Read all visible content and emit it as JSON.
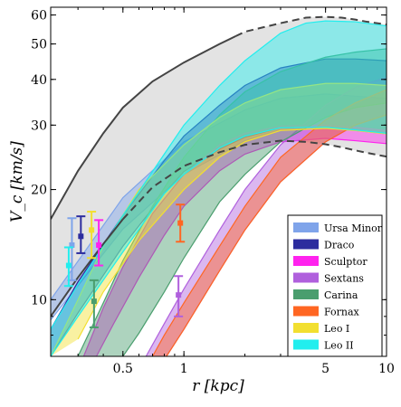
{
  "chart_data": {
    "type": "area",
    "xlabel": "r [kpc]",
    "ylabel": "V_c [km/s]",
    "xscale": "log",
    "yscale": "log",
    "xlim": [
      0.22,
      10
    ],
    "ylim": [
      7,
      63
    ],
    "x_ticks": [
      {
        "value": 0.5,
        "label": "0.5"
      },
      {
        "value": 1,
        "label": "1"
      },
      {
        "value": 5,
        "label": "5"
      },
      {
        "value": 10,
        "label": "10"
      }
    ],
    "y_ticks": [
      {
        "value": 10,
        "label": "10"
      },
      {
        "value": 20,
        "label": "20"
      },
      {
        "value": 30,
        "label": "30"
      },
      {
        "value": 40,
        "label": "40"
      },
      {
        "value": 50,
        "label": "50"
      },
      {
        "value": 60,
        "label": "60"
      }
    ],
    "legend_position": "bottom-right",
    "envelope": {
      "fill": "#e3e3e3",
      "line_color": "#444444",
      "upper": [
        [
          0.22,
          16.6
        ],
        [
          0.3,
          22.5
        ],
        [
          0.4,
          28.5
        ],
        [
          0.5,
          33.5
        ],
        [
          0.7,
          39.5
        ],
        [
          1.0,
          44.5
        ],
        [
          1.5,
          50
        ],
        [
          2.0,
          54
        ],
        [
          3.0,
          57
        ],
        [
          4.0,
          59
        ],
        [
          5.0,
          59.3
        ],
        [
          6.0,
          59
        ],
        [
          7.0,
          58.3
        ],
        [
          8.0,
          57.5
        ],
        [
          10.0,
          56.5
        ]
      ],
      "upper_solid_until": 1.8,
      "lower": [
        [
          0.22,
          9
        ],
        [
          0.3,
          11.5
        ],
        [
          0.4,
          14.2
        ],
        [
          0.5,
          16.6
        ],
        [
          0.7,
          20.3
        ],
        [
          1.0,
          23.2
        ],
        [
          1.5,
          25.3
        ],
        [
          2.0,
          26.5
        ],
        [
          3.0,
          27.2
        ],
        [
          4.0,
          27
        ],
        [
          5.0,
          26.6
        ],
        [
          6.0,
          26.1
        ],
        [
          7.0,
          25.6
        ],
        [
          8.0,
          25.2
        ],
        [
          10.0,
          24.6
        ]
      ],
      "lower_solid_until": 0.5
    },
    "series": [
      {
        "name": "Ursa Minor",
        "color": "#7fa4ea",
        "upper": [
          [
            0.22,
            10
          ],
          [
            0.5,
            19
          ],
          [
            1.0,
            27
          ],
          [
            2.0,
            33
          ],
          [
            3.0,
            35.5
          ],
          [
            5.0,
            36.5
          ],
          [
            7.0,
            36
          ],
          [
            10.0,
            35.5
          ]
        ],
        "lower": [
          [
            0.22,
            8.8
          ],
          [
            0.5,
            15.6
          ],
          [
            1.0,
            22
          ],
          [
            2.0,
            27.2
          ],
          [
            3.0,
            29.2
          ],
          [
            5.0,
            29.4
          ],
          [
            7.0,
            29
          ],
          [
            10.0,
            28.4
          ]
        ],
        "error_bar": {
          "x": 0.28,
          "y": 14.1,
          "y_low": 11.3,
          "y_high": 16.7
        }
      },
      {
        "name": "Draco",
        "color": "#2c2c9e",
        "upper": [
          [
            0.22,
            8.3
          ],
          [
            0.3,
            11.2
          ],
          [
            0.5,
            17
          ],
          [
            0.8,
            24
          ],
          [
            1.0,
            28
          ],
          [
            1.5,
            34
          ],
          [
            2.0,
            38.5
          ],
          [
            3.0,
            43
          ],
          [
            5.0,
            45.5
          ],
          [
            7.0,
            45.5
          ],
          [
            10.0,
            45
          ]
        ],
        "lower": [
          [
            0.22,
            7
          ],
          [
            0.3,
            9.2
          ],
          [
            0.5,
            14
          ],
          [
            0.8,
            19.5
          ],
          [
            1.0,
            22.4
          ],
          [
            1.5,
            25.8
          ],
          [
            2.0,
            27.8
          ],
          [
            3.0,
            29.5
          ],
          [
            5.0,
            29.6
          ],
          [
            7.0,
            29.1
          ],
          [
            10.0,
            28.5
          ]
        ],
        "error_bar": {
          "x": 0.31,
          "y": 14.9,
          "y_low": 13.4,
          "y_high": 16.9
        }
      },
      {
        "name": "Sculptor",
        "color": "#ff22ee",
        "upper": [
          [
            0.32,
            7
          ],
          [
            0.4,
            9.5
          ],
          [
            0.5,
            12.3
          ],
          [
            0.7,
            17.2
          ],
          [
            1.0,
            22
          ],
          [
            1.5,
            26.5
          ],
          [
            2.0,
            28.5
          ],
          [
            3.0,
            29.8
          ],
          [
            5.0,
            30
          ],
          [
            7.0,
            29.6
          ],
          [
            10.0,
            29
          ]
        ],
        "lower": [
          [
            0.37,
            7
          ],
          [
            0.45,
            8.6
          ],
          [
            0.6,
            11.5
          ],
          [
            0.8,
            15
          ],
          [
            1.0,
            18
          ],
          [
            1.5,
            22.5
          ],
          [
            2.0,
            25
          ],
          [
            3.0,
            27
          ],
          [
            5.0,
            27.6
          ],
          [
            7.0,
            27.2
          ],
          [
            10.0,
            26.7
          ]
        ],
        "error_bar": {
          "x": 0.38,
          "y": 14.1,
          "y_low": 12.4,
          "y_high": 16.5
        }
      },
      {
        "name": "Sextans",
        "color": "#b060dd",
        "upper": [
          [
            0.65,
            7
          ],
          [
            0.8,
            8.6
          ],
          [
            1.0,
            10.7
          ],
          [
            1.5,
            15.5
          ],
          [
            2.0,
            20
          ],
          [
            3.0,
            26.5
          ],
          [
            5.0,
            34
          ],
          [
            7.0,
            38
          ],
          [
            10.0,
            40.5
          ]
        ],
        "lower": [
          [
            0.82,
            7
          ],
          [
            1.0,
            8.3
          ],
          [
            1.5,
            12
          ],
          [
            2.0,
            15.5
          ],
          [
            3.0,
            21
          ],
          [
            5.0,
            27
          ],
          [
            7.0,
            30
          ],
          [
            10.0,
            32
          ]
        ],
        "error_bar": {
          "x": 0.94,
          "y": 10.3,
          "y_low": 9.0,
          "y_high": 11.6
        }
      },
      {
        "name": "Carina",
        "color": "#4a9e6e",
        "upper": [
          [
            0.3,
            7
          ],
          [
            0.4,
            9.8
          ],
          [
            0.5,
            12.8
          ],
          [
            0.7,
            18
          ],
          [
            1.0,
            24.5
          ],
          [
            1.5,
            32
          ],
          [
            2.0,
            37
          ],
          [
            3.0,
            42
          ],
          [
            5.0,
            46
          ],
          [
            7.0,
            47.5
          ],
          [
            10.0,
            48.5
          ]
        ],
        "lower": [
          [
            0.5,
            7
          ],
          [
            0.6,
            8.1
          ],
          [
            0.8,
            10.5
          ],
          [
            1.0,
            13
          ],
          [
            1.5,
            18.5
          ],
          [
            2.0,
            22
          ],
          [
            3.0,
            27
          ],
          [
            5.0,
            31.5
          ],
          [
            7.0,
            33.5
          ],
          [
            10.0,
            34.5
          ]
        ],
        "error_bar": {
          "x": 0.36,
          "y": 9.9,
          "y_low": 8.4,
          "y_high": 11.3
        }
      },
      {
        "name": "Fornax",
        "color": "#ff6622",
        "upper": [
          [
            0.7,
            7
          ],
          [
            0.8,
            8
          ],
          [
            1.0,
            9.8
          ],
          [
            1.5,
            14
          ],
          [
            2.0,
            18
          ],
          [
            3.0,
            24.5
          ],
          [
            5.0,
            31
          ],
          [
            7.0,
            34.5
          ],
          [
            10.0,
            37.5
          ]
        ],
        "lower": [
          [
            0.82,
            7
          ],
          [
            1.0,
            8.3
          ],
          [
            1.5,
            12
          ],
          [
            2.0,
            15.5
          ],
          [
            3.0,
            21
          ],
          [
            5.0,
            27
          ],
          [
            7.0,
            30
          ],
          [
            10.0,
            32
          ]
        ],
        "error_bar": {
          "x": 0.96,
          "y": 16.2,
          "y_low": 14.4,
          "y_high": 18.2
        }
      },
      {
        "name": "Leo I",
        "color": "#f2df30",
        "upper": [
          [
            0.22,
            7
          ],
          [
            0.3,
            10
          ],
          [
            0.4,
            14
          ],
          [
            0.6,
            20
          ],
          [
            1.0,
            26.5
          ],
          [
            1.5,
            31.5
          ],
          [
            2.0,
            34.5
          ],
          [
            3.0,
            37.5
          ],
          [
            5.0,
            39
          ],
          [
            7.0,
            39
          ],
          [
            10.0,
            38.5
          ]
        ],
        "lower": [
          [
            0.3,
            7.8
          ],
          [
            0.4,
            10.5
          ],
          [
            0.6,
            14.5
          ],
          [
            1.0,
            20
          ],
          [
            1.5,
            24.5
          ],
          [
            2.0,
            27
          ],
          [
            3.0,
            29
          ],
          [
            5.0,
            29.4
          ],
          [
            7.0,
            29
          ],
          [
            10.0,
            28.4
          ]
        ],
        "error_bar": {
          "x": 0.35,
          "y": 15.5,
          "y_low": 13.0,
          "y_high": 17.4
        }
      },
      {
        "name": "Leo II",
        "color": "#22eeee",
        "upper": [
          [
            0.22,
            8.3
          ],
          [
            0.3,
            11
          ],
          [
            0.5,
            17
          ],
          [
            0.8,
            25
          ],
          [
            1.0,
            30
          ],
          [
            1.5,
            38.5
          ],
          [
            2.0,
            45
          ],
          [
            3.0,
            53.5
          ],
          [
            4.0,
            57
          ],
          [
            5.0,
            57.8
          ],
          [
            7.0,
            57.5
          ],
          [
            10.0,
            56
          ]
        ],
        "lower": [
          [
            0.22,
            7
          ],
          [
            0.3,
            9
          ],
          [
            0.5,
            13.5
          ],
          [
            0.8,
            19.5
          ],
          [
            1.0,
            22
          ],
          [
            1.5,
            26
          ],
          [
            2.0,
            28
          ],
          [
            3.0,
            29.5
          ],
          [
            5.0,
            29.6
          ],
          [
            7.0,
            29.1
          ],
          [
            10.0,
            28.5
          ]
        ],
        "error_bar": {
          "x": 0.27,
          "y": 12.4,
          "y_low": 10.9,
          "y_high": 13.9
        }
      }
    ]
  }
}
